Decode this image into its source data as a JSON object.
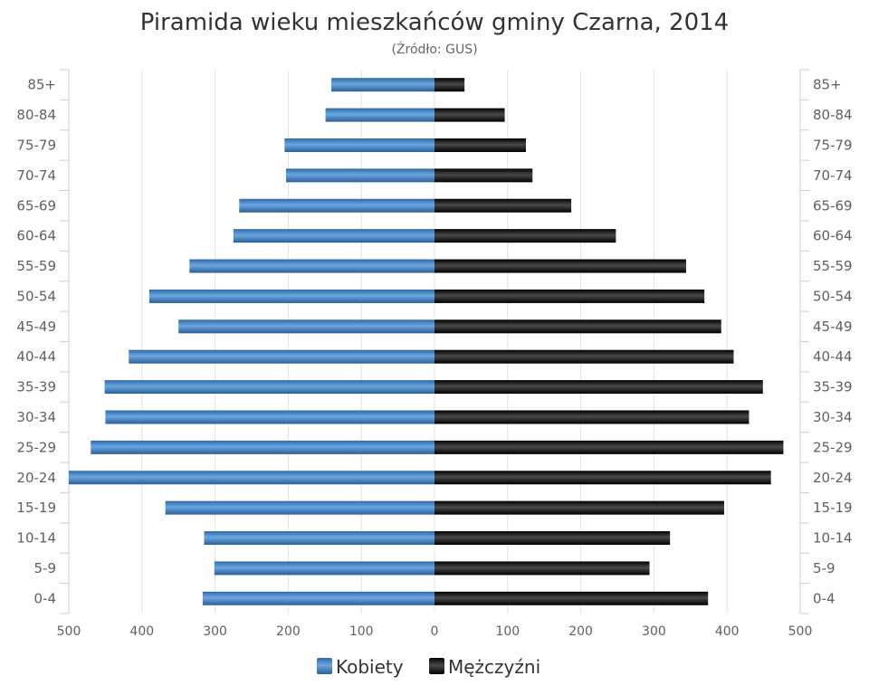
{
  "chart_data": {
    "type": "bar",
    "orientation": "horizontal-pyramid",
    "title": "Piramida wieku mieszkańców gminy Czarna, 2014",
    "subtitle": "(Źródło: GUS)",
    "categories": [
      "85+",
      "80-84",
      "75-79",
      "70-74",
      "65-69",
      "60-64",
      "55-59",
      "50-54",
      "45-49",
      "40-44",
      "35-39",
      "30-34",
      "25-29",
      "20-24",
      "15-19",
      "10-14",
      "5-9",
      "0-4"
    ],
    "series": [
      {
        "name": "Kobiety",
        "color": "#4a86c5",
        "side": "left",
        "values": [
          141,
          149,
          205,
          203,
          267,
          275,
          335,
          390,
          350,
          418,
          451,
          450,
          470,
          500,
          368,
          315,
          301,
          317
        ]
      },
      {
        "name": "Mężczyźni",
        "color": "#1a1a1a",
        "side": "right",
        "values": [
          41,
          96,
          125,
          134,
          187,
          248,
          344,
          369,
          392,
          409,
          449,
          430,
          477,
          460,
          396,
          322,
          294,
          374
        ]
      }
    ],
    "xlim": [
      -500,
      500
    ],
    "xticks": [
      "500",
      "400",
      "300",
      "200",
      "100",
      "0",
      "100",
      "200",
      "300",
      "400",
      "500"
    ],
    "grid": true,
    "legend_position": "bottom"
  }
}
